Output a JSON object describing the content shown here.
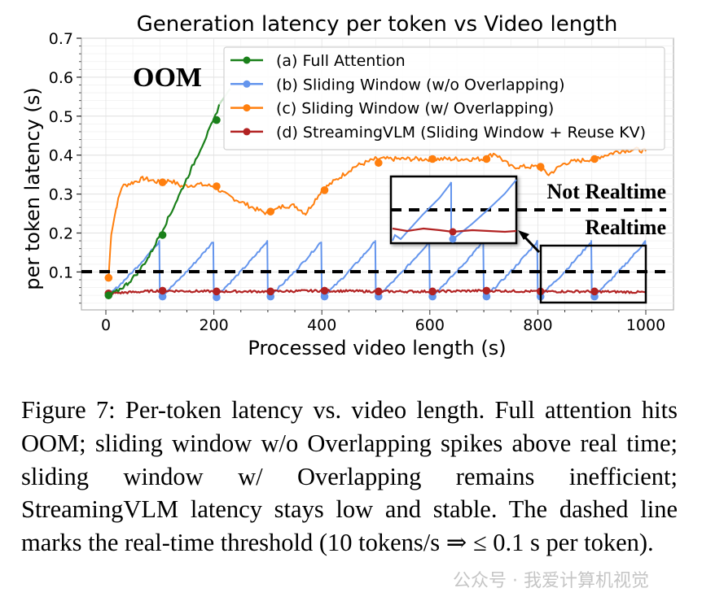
{
  "chart_data": {
    "type": "line",
    "title": "Generation latency per token vs Video length",
    "xlabel": "Processed video length (s)",
    "ylabel": "per token latency (s)",
    "xlim": [
      -45,
      1050
    ],
    "ylim": [
      0.01,
      0.7
    ],
    "xticks": [
      0,
      200,
      400,
      600,
      800,
      1000
    ],
    "yticks": [
      0.1,
      0.2,
      0.3,
      0.4,
      0.5,
      0.6,
      0.7
    ],
    "grid": true,
    "legend_position": "upper right",
    "threshold": {
      "y": 0.1,
      "style": "dashed",
      "color": "#000000"
    },
    "annotations": [
      "OOM",
      "Not Realtime",
      "Realtime"
    ],
    "series": [
      {
        "name": "(a) Full Attention",
        "color": "#1a801a",
        "x": [
          5,
          20,
          40,
          60,
          80,
          100,
          120,
          140,
          160,
          180,
          200,
          210,
          220,
          230
        ],
        "y": [
          0.04,
          0.05,
          0.07,
          0.1,
          0.14,
          0.195,
          0.25,
          0.31,
          0.37,
          0.43,
          0.49,
          0.53,
          0.55,
          0.57
        ],
        "markers_x": [
          5,
          105,
          205
        ],
        "markers_y": [
          0.04,
          0.195,
          0.49
        ],
        "note": "OOM"
      },
      {
        "name": "(b) Sliding Window (w/o Overlapping)",
        "color": "#6495ed",
        "sawtooth": {
          "period": 100,
          "min": 0.037,
          "peak": 0.18,
          "drop_points": [
            100,
            200,
            300,
            400,
            500,
            600,
            700,
            800,
            900
          ]
        },
        "markers_x": [
          105,
          205,
          305,
          405,
          505,
          605,
          705,
          805,
          905
        ],
        "markers_y": [
          0.037,
          0.035,
          0.037,
          0.037,
          0.037,
          0.037,
          0.037,
          0.037,
          0.037
        ]
      },
      {
        "name": "(c) Sliding Window (w/ Overlapping)",
        "color": "#ff7f0e",
        "x": [
          5,
          10,
          20,
          30,
          50,
          70,
          100,
          120,
          140,
          170,
          200,
          220,
          250,
          280,
          300,
          330,
          350,
          370,
          400,
          430,
          460,
          500,
          550,
          600,
          650,
          700,
          720,
          750,
          800,
          820,
          850,
          900,
          950,
          980,
          1000
        ],
        "y": [
          0.085,
          0.2,
          0.27,
          0.32,
          0.33,
          0.34,
          0.33,
          0.335,
          0.32,
          0.325,
          0.32,
          0.3,
          0.28,
          0.26,
          0.25,
          0.27,
          0.27,
          0.25,
          0.31,
          0.34,
          0.37,
          0.39,
          0.39,
          0.39,
          0.39,
          0.39,
          0.405,
          0.37,
          0.37,
          0.35,
          0.38,
          0.39,
          0.41,
          0.415,
          0.41
        ],
        "markers_x": [
          5,
          105,
          205,
          305,
          405,
          505,
          605,
          705,
          805,
          905
        ],
        "markers_y": [
          0.085,
          0.33,
          0.32,
          0.255,
          0.31,
          0.38,
          0.39,
          0.39,
          0.37,
          0.39
        ]
      },
      {
        "name": "(d) StreamingVLM (Sliding Window + Reuse KV)",
        "color": "#b22222",
        "x": [
          5,
          100,
          200,
          300,
          400,
          500,
          600,
          700,
          800,
          900,
          1000
        ],
        "y": [
          0.045,
          0.052,
          0.05,
          0.05,
          0.052,
          0.05,
          0.05,
          0.052,
          0.05,
          0.05,
          0.048
        ],
        "markers_x": [
          5,
          105,
          205,
          305,
          405,
          505,
          605,
          705,
          805,
          905
        ],
        "markers_y": [
          0.045,
          0.052,
          0.05,
          0.05,
          0.052,
          0.05,
          0.05,
          0.052,
          0.05,
          0.05
        ]
      }
    ]
  },
  "chart": {
    "title": "Generation latency per token vs Video length",
    "xlabel": "Processed video length (s)",
    "ylabel": "per token latency (s)",
    "xticks": [
      "0",
      "200",
      "400",
      "600",
      "800",
      "1000"
    ],
    "yticks": [
      "0.1",
      "0.2",
      "0.3",
      "0.4",
      "0.5",
      "0.6",
      "0.7"
    ],
    "legend": [
      "(a) Full Attention",
      "(b) Sliding Window (w/o Overlapping)",
      "(c) Sliding Window (w/ Overlapping)",
      "(d) StreamingVLM (Sliding Window + Reuse KV)"
    ],
    "oom_label": "OOM",
    "not_realtime_label": "Not Realtime",
    "realtime_label": "Realtime"
  },
  "caption": {
    "text": "Figure 7: Per-token latency vs. video length. Full at­tention hits OOM; sliding window w/o Overlapping spikes above real time; sliding window w/ Overlap­ping remains inefficient; StreamingVLM latency stays low and stable.  The dashed line marks the real-time threshold (10 tokens/s ⇒ ≤ 0.1 s per token)."
  },
  "watermark": {
    "text": "公众号 · 我爱计算机视觉"
  }
}
